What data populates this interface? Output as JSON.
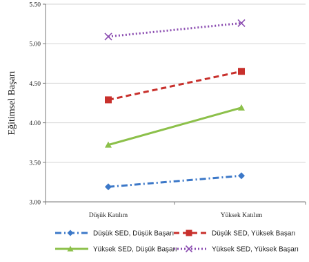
{
  "chart_data": {
    "type": "line",
    "ylabel": "Eğitimsel Başarı",
    "xlabel": "",
    "ylim": [
      3.0,
      5.5
    ],
    "yticks": [
      "3.00",
      "3.50",
      "4.00",
      "4.50",
      "5.00",
      "5.50"
    ],
    "categories": [
      "Düşük Katılım",
      "Yüksek Katılım"
    ],
    "grid": "horizontal",
    "legend_position": "bottom",
    "series": [
      {
        "name": "Düşük SED, Düşük Başarı",
        "values": [
          3.19,
          3.33
        ],
        "color": "#3c78c8",
        "line_style": "dash-dot",
        "marker": "diamond"
      },
      {
        "name": "Düşük SED, Yüksek Başarı",
        "values": [
          4.29,
          4.65
        ],
        "color": "#c8302c",
        "line_style": "dashed",
        "marker": "square"
      },
      {
        "name": "Yüksek SED, Düşük Başarı",
        "values": [
          3.72,
          4.19
        ],
        "color": "#8cc04a",
        "line_style": "solid",
        "marker": "triangle"
      },
      {
        "name": "Yüksek SED, Yüksek Başarı",
        "values": [
          5.09,
          5.26
        ],
        "color": "#8a4bb0",
        "line_style": "dotted",
        "marker": "x"
      }
    ]
  }
}
